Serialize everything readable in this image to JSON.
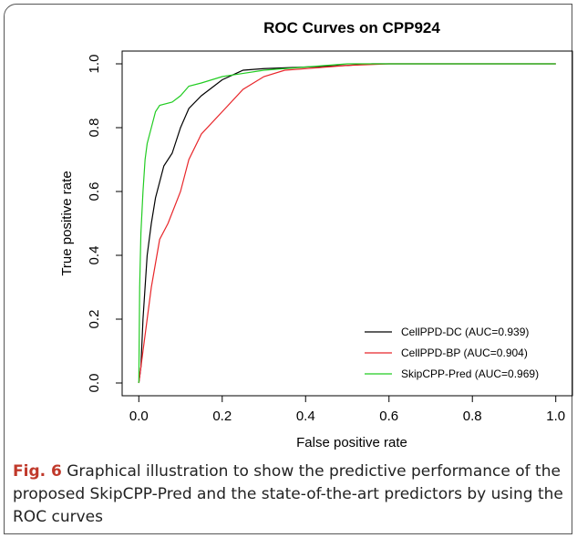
{
  "chart_data": {
    "type": "line",
    "title": "ROC Curves on CPP924",
    "x_label": "False positive rate",
    "y_label": "True positive rate",
    "xlim": [
      -0.04,
      1.04
    ],
    "ylim": [
      -0.04,
      1.04
    ],
    "xticks": [
      {
        "value": 0,
        "label": "0.0"
      },
      0.2,
      0.4,
      0.6,
      0.8,
      {
        "value": 1,
        "label": "1.0"
      }
    ],
    "yticks": [
      {
        "value": 0,
        "label": "0.0"
      },
      0.2,
      0.4,
      0.6,
      0.8,
      {
        "value": 1,
        "label": "1.0"
      }
    ],
    "legend": "bottom-right",
    "series": [
      {
        "name": "CellPPD-DC (AUC=0.939)",
        "color": "#000000",
        "x": [
          0,
          0.005,
          0.01,
          0.02,
          0.03,
          0.04,
          0.05,
          0.06,
          0.08,
          0.1,
          0.12,
          0.15,
          0.2,
          0.25,
          0.3,
          0.4,
          0.5,
          0.56,
          1
        ],
        "values": [
          0,
          0.05,
          0.2,
          0.4,
          0.5,
          0.58,
          0.63,
          0.68,
          0.72,
          0.8,
          0.86,
          0.9,
          0.95,
          0.98,
          0.985,
          0.99,
          0.995,
          1,
          1
        ]
      },
      {
        "name": "CellPPD-BP (AUC=0.904)",
        "color": "#e8262a",
        "x": [
          0,
          0.01,
          0.02,
          0.03,
          0.05,
          0.07,
          0.1,
          0.12,
          0.15,
          0.2,
          0.25,
          0.3,
          0.35,
          0.4,
          0.5,
          0.6,
          1
        ],
        "values": [
          0,
          0.1,
          0.2,
          0.3,
          0.45,
          0.5,
          0.6,
          0.7,
          0.78,
          0.85,
          0.92,
          0.96,
          0.98,
          0.985,
          0.995,
          1,
          1
        ]
      },
      {
        "name": "SkipCPP-Pred (AUC=0.969)",
        "color": "#22cc22",
        "x": [
          0,
          0.002,
          0.005,
          0.01,
          0.015,
          0.02,
          0.03,
          0.04,
          0.05,
          0.08,
          0.1,
          0.12,
          0.15,
          0.2,
          0.3,
          0.4,
          0.5,
          1
        ],
        "values": [
          0,
          0.3,
          0.47,
          0.6,
          0.7,
          0.75,
          0.8,
          0.85,
          0.87,
          0.88,
          0.9,
          0.93,
          0.94,
          0.96,
          0.98,
          0.99,
          1,
          1
        ]
      }
    ]
  },
  "caption": {
    "label": "Fig. 6",
    "text": "Graphical illustration to show the predictive performance of the proposed SkipCPP-Pred and the state-of-the-art predictors by using the ROC curves"
  }
}
